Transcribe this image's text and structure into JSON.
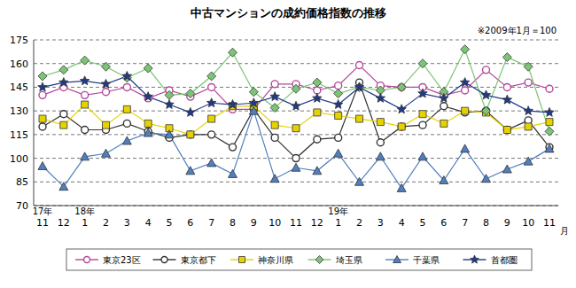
{
  "chart_data": {
    "type": "line",
    "title": "中古マンションの成約価格指数の推移",
    "subtitle": "※2009年1月＝100",
    "xlabel": "月",
    "categories": [
      "11",
      "12",
      "1",
      "2",
      "3",
      "4",
      "5",
      "6",
      "7",
      "8",
      "9",
      "10",
      "11",
      "12",
      "1",
      "2",
      "3",
      "4",
      "5",
      "6",
      "7",
      "8",
      "9",
      "10",
      "11"
    ],
    "year_labels": [
      {
        "label": "17年",
        "category_index": 0
      },
      {
        "label": "18年",
        "category_index": 2
      },
      {
        "label": "19年",
        "category_index": 14
      }
    ],
    "ylim": [
      70,
      175
    ],
    "yticks": [
      70,
      85,
      100,
      115,
      130,
      145,
      160,
      175
    ],
    "grid": true,
    "legend": "bottom",
    "series": [
      {
        "name": "東京23区",
        "color": "#b5479a",
        "marker": "circle",
        "values": [
          140,
          145,
          140,
          142,
          145,
          138,
          143,
          139,
          145,
          131,
          131,
          147,
          147,
          143,
          146,
          159,
          146,
          145,
          145,
          140,
          143,
          156,
          145,
          148,
          144
        ]
      },
      {
        "name": "東京都下",
        "color": "#333333",
        "marker": "circle",
        "values": [
          120,
          128,
          118,
          118,
          122,
          117,
          113,
          115,
          115,
          107,
          131,
          113,
          100,
          112,
          113,
          148,
          110,
          120,
          121,
          133,
          129,
          130,
          118,
          124,
          107
        ]
      },
      {
        "name": "神奈川県",
        "color": "#e6d200",
        "marker": "square",
        "values": [
          125,
          121,
          134,
          121,
          131,
          122,
          119,
          115,
          125,
          133,
          133,
          121,
          119,
          129,
          127,
          125,
          123,
          120,
          128,
          122,
          130,
          129,
          118,
          120,
          123
        ]
      },
      {
        "name": "埼玉県",
        "color": "#7cc576",
        "marker": "diamond",
        "values": [
          152,
          156,
          162,
          158,
          151,
          157,
          140,
          141,
          152,
          167,
          142,
          132,
          144,
          148,
          141,
          145,
          143,
          145,
          160,
          142,
          169,
          130,
          164,
          158,
          117
        ]
      },
      {
        "name": "千葉県",
        "color": "#4f7fbf",
        "marker": "triangle",
        "values": [
          95,
          82,
          101,
          103,
          111,
          116,
          115,
          92,
          97,
          90,
          130,
          87,
          94,
          92,
          103,
          85,
          101,
          81,
          101,
          86,
          106,
          87,
          93,
          98,
          106
        ]
      },
      {
        "name": "首都圏",
        "color": "#1f3a8a",
        "marker": "star",
        "values": [
          145,
          148,
          149,
          147,
          152,
          139,
          134,
          129,
          135,
          134,
          135,
          139,
          133,
          138,
          134,
          145,
          138,
          131,
          141,
          138,
          148,
          140,
          137,
          130,
          129
        ]
      }
    ]
  }
}
